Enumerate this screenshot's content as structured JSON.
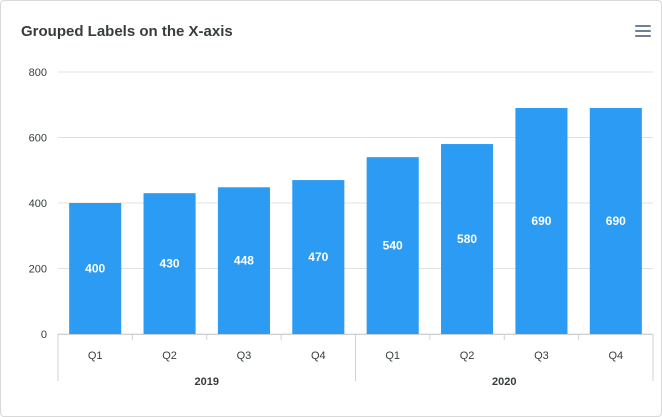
{
  "title": "Grouped Labels on the X-axis",
  "menu_icon": "hamburger-menu-icon",
  "chart_data": {
    "type": "bar",
    "title": "Grouped Labels on the X-axis",
    "xlabel": "",
    "ylabel": "",
    "ylim": [
      0,
      800
    ],
    "yticks": [
      0,
      200,
      400,
      600,
      800
    ],
    "grid": true,
    "color": "#2b9bf4",
    "categories": [
      "Q1",
      "Q2",
      "Q3",
      "Q4",
      "Q1",
      "Q2",
      "Q3",
      "Q4"
    ],
    "groups": [
      {
        "label": "2019",
        "count": 4
      },
      {
        "label": "2020",
        "count": 4
      }
    ],
    "values": [
      400,
      430,
      448,
      470,
      540,
      580,
      690,
      690
    ],
    "data_labels": true
  }
}
